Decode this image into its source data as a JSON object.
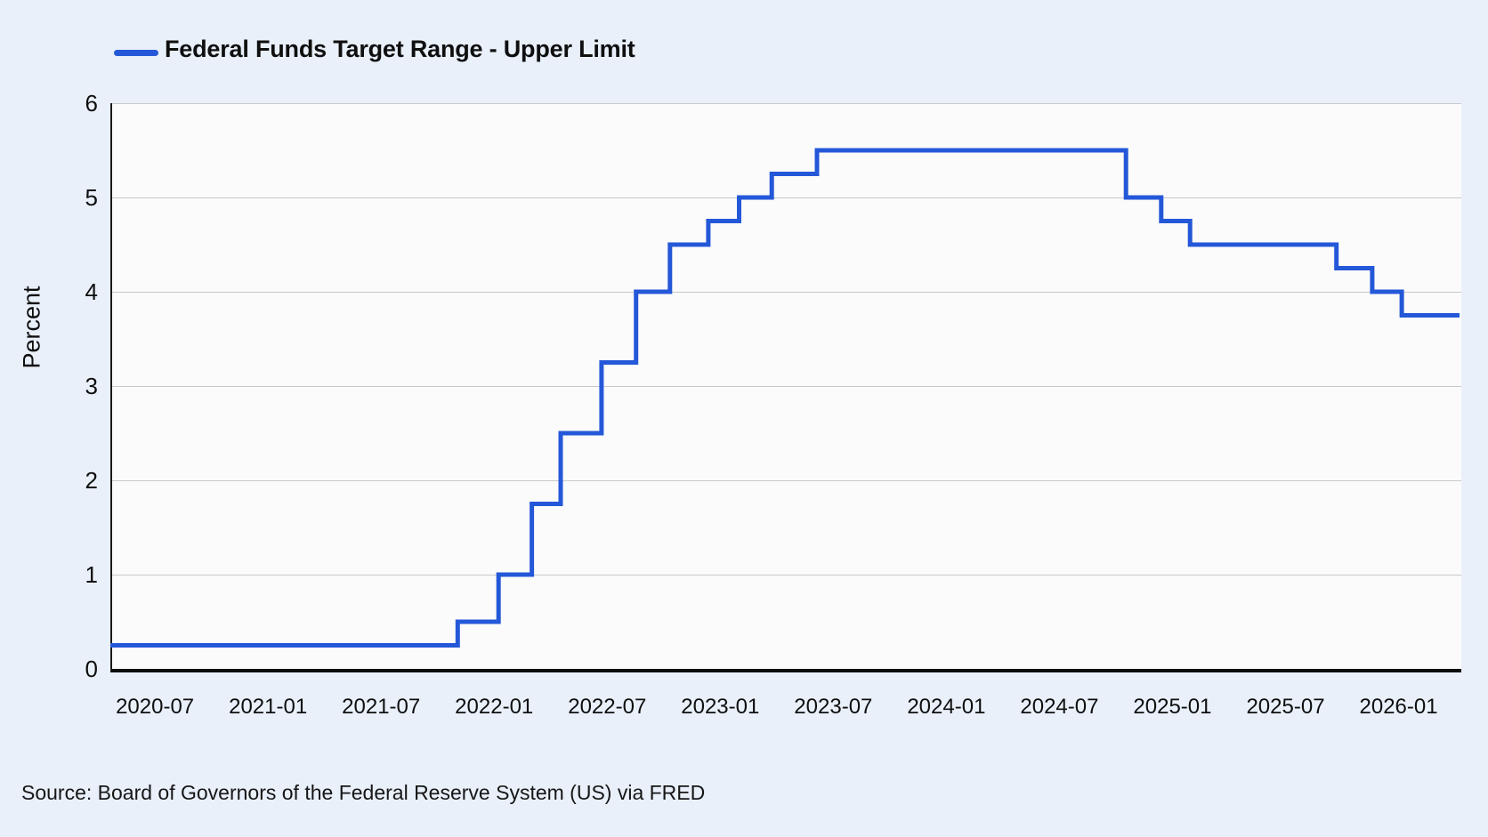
{
  "legend": {
    "label": "Federal Funds Target Range - Upper Limit"
  },
  "source_note": "Source: Board of Governors of the Federal Reserve System (US) via FRED",
  "colors": {
    "line": "#2458d8",
    "page_background": "#e9f0fa",
    "plot_background": "#fbfbfb",
    "gridline": "#c7c9cc",
    "axis": "#0c0c0c",
    "text": "#0f0f0f"
  },
  "chart_data": {
    "type": "line",
    "step": "after",
    "title": "",
    "xlabel": "",
    "ylabel": "Percent",
    "ylim": [
      0,
      6
    ],
    "yticks": [
      0,
      1,
      2,
      3,
      4,
      5,
      6
    ],
    "xticks": [
      "2020-07",
      "2021-01",
      "2021-07",
      "2022-01",
      "2022-07",
      "2023-01",
      "2023-07",
      "2024-01",
      "2024-07",
      "2025-01",
      "2025-07",
      "2026-01"
    ],
    "x_domain": {
      "start": "2020-04-20",
      "end": "2026-04-08"
    },
    "grid": "horizontal-only",
    "legend_position": "top-left",
    "series": [
      {
        "name": "Federal Funds Target Range - Upper Limit",
        "color": "#2458d8",
        "points": [
          [
            "2020-04-20",
            0.25
          ],
          [
            "2021-11-03",
            0.5
          ],
          [
            "2022-01-08",
            1.0
          ],
          [
            "2022-03-01",
            1.75
          ],
          [
            "2022-04-17",
            2.5
          ],
          [
            "2022-06-22",
            3.25
          ],
          [
            "2022-08-17",
            4.0
          ],
          [
            "2022-10-11",
            4.5
          ],
          [
            "2022-12-12",
            4.75
          ],
          [
            "2023-02-01",
            5.0
          ],
          [
            "2023-03-23",
            5.25
          ],
          [
            "2023-06-05",
            5.5
          ],
          [
            "2024-10-17",
            5.0
          ],
          [
            "2024-12-13",
            4.75
          ],
          [
            "2025-01-29",
            4.5
          ],
          [
            "2025-09-22",
            4.25
          ],
          [
            "2025-11-19",
            4.0
          ],
          [
            "2026-01-06",
            3.75
          ]
        ],
        "extends_to": "2026-04-08"
      }
    ]
  }
}
